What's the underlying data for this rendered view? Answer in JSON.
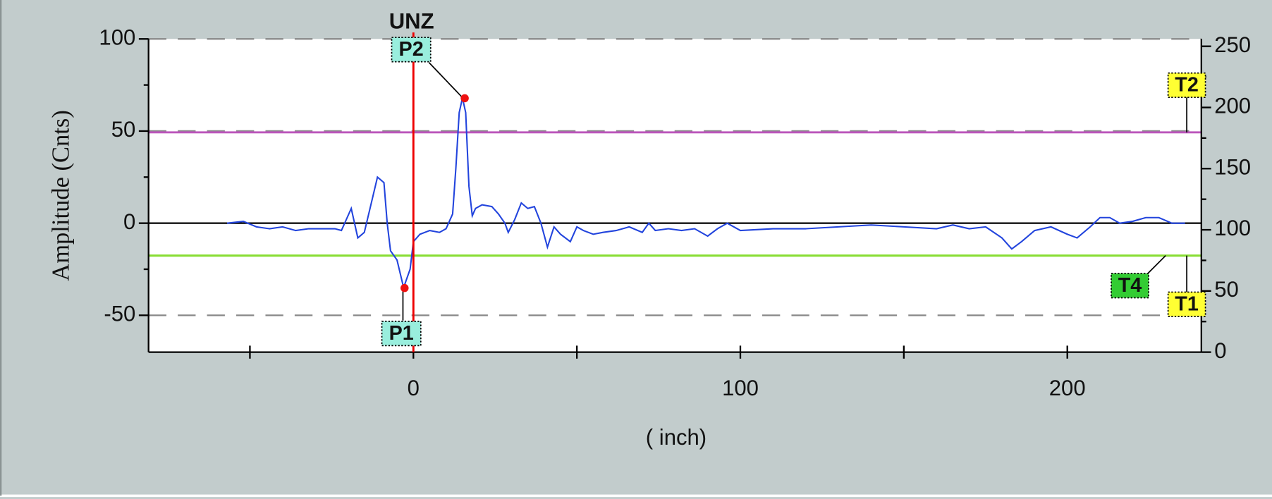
{
  "chart_data": {
    "type": "line",
    "title": "UNZ",
    "ylabel": "Amplitude (Cnts)",
    "xlabel": "( inch)",
    "xlim": [
      -81,
      241
    ],
    "xticks": [
      0,
      100,
      200
    ],
    "xminor_ticks": [
      -50,
      50,
      150
    ],
    "ylim": [
      -70,
      100
    ],
    "yticks": [
      -50,
      0,
      50,
      100
    ],
    "yminor_ticks": [
      -25,
      25,
      75
    ],
    "y2lim": [
      0,
      256
    ],
    "y2ticks": [
      0,
      50,
      100,
      150,
      200,
      250
    ],
    "y2minor_ticks": [
      25,
      75,
      125,
      175,
      225
    ],
    "grid": true,
    "x": [
      -57,
      -52,
      -48,
      -44,
      -40,
      -36,
      -32,
      -28,
      -24,
      -22,
      -19,
      -17,
      -15,
      -13,
      -11,
      -9,
      -8,
      -7,
      -5,
      -3,
      -1,
      0,
      2,
      5,
      8,
      10,
      12,
      13,
      14,
      15,
      16,
      17,
      18,
      19,
      21,
      24,
      26,
      28,
      29,
      31,
      33,
      35,
      37,
      39,
      41,
      43,
      45,
      48,
      50,
      52,
      55,
      58,
      62,
      66,
      70,
      72,
      74,
      78,
      82,
      86,
      90,
      93,
      96,
      100,
      110,
      120,
      130,
      140,
      150,
      160,
      165,
      170,
      175,
      180,
      183,
      186,
      190,
      195,
      200,
      203,
      207,
      210,
      213,
      216,
      220,
      224,
      228,
      232,
      236
    ],
    "series": [
      {
        "color": "#2244dd",
        "values": [
          0,
          1,
          -2,
          -3,
          -2,
          -4,
          -3,
          -3,
          -3,
          -4,
          8,
          -8,
          -5,
          10,
          25,
          22,
          0,
          -15,
          -20,
          -35,
          -25,
          -10,
          -6,
          -4,
          -5,
          -3,
          5,
          30,
          60,
          68,
          60,
          20,
          4,
          8,
          10,
          9,
          5,
          0,
          -5,
          2,
          11,
          8,
          9,
          0,
          -13,
          -2,
          -6,
          -10,
          -2,
          -4,
          -6,
          -5,
          -4,
          -2,
          -5,
          0,
          -4,
          -3,
          -4,
          -3,
          -7,
          -3,
          0,
          -4,
          -3,
          -3,
          -2,
          -1,
          -2,
          -3,
          -1,
          -3,
          -2,
          -8,
          -14,
          -10,
          -4,
          -2,
          -6,
          -8,
          -2,
          3,
          3,
          0,
          1,
          3,
          3,
          0,
          0
        ]
      }
    ],
    "cursor": {
      "x": 0,
      "color": "#ee0000"
    },
    "markers": [
      {
        "name": "P1",
        "x": -2.7,
        "y": -35.2,
        "color": "#ee1111"
      },
      {
        "name": "P2",
        "x": 15.7,
        "y": 67.8,
        "color": "#ee1111"
      }
    ],
    "thresholds": [
      {
        "name": "T2",
        "value": 49.3,
        "color": "#bb55bb",
        "tag_color": "#ffff33"
      },
      {
        "name": "T4",
        "value": -17.6,
        "color": "#88dd33",
        "tag_color": "#33cc33"
      },
      {
        "name": "T1",
        "value": -17.6,
        "color": "#88dd33",
        "tag_color": "#ffff33"
      }
    ]
  }
}
